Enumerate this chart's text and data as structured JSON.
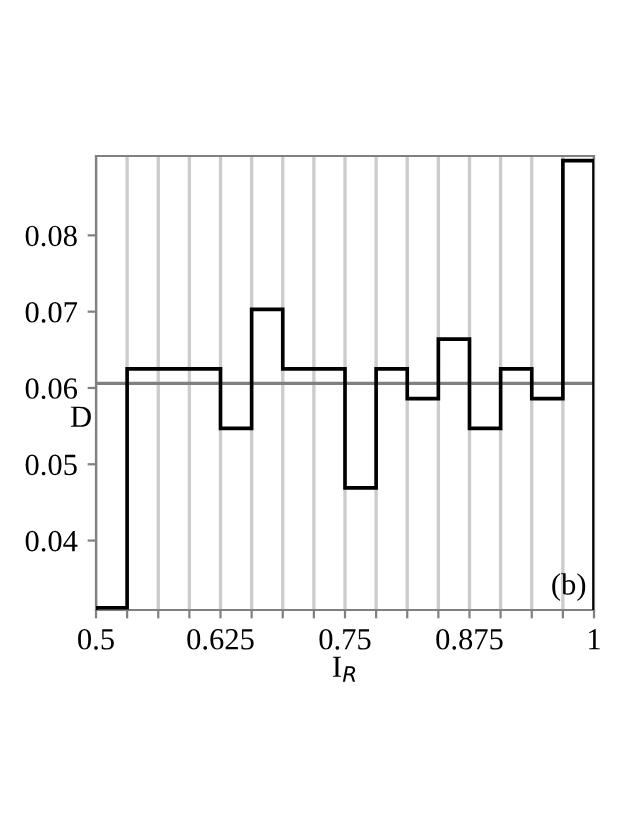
{
  "chart_data": {
    "type": "histogram",
    "xlabel": "I$_{R}$",
    "ylabel": "D",
    "bins": [
      0.5,
      0.53125,
      0.5625,
      0.59375,
      0.625,
      0.65625,
      0.6875,
      0.71875,
      0.75,
      0.78125,
      0.8125,
      0.84375,
      0.875,
      0.90625,
      0.9375,
      0.96875,
      1.0
    ],
    "values": [
      0.0312,
      0.0625,
      0.0625,
      0.0625,
      0.0547,
      0.0703,
      0.0625,
      0.0625,
      0.0469,
      0.0625,
      0.0586,
      0.0664,
      0.0547,
      0.0625,
      0.0586,
      0.0898
    ],
    "color": "#000000",
    "xlim": [
      0.5,
      1.0
    ],
    "ylim": [
      0.0309,
      0.0904
    ],
    "xticks": [
      0.5,
      {
        "value": 0.53125,
        "label": null
      },
      {
        "value": 0.5625,
        "label": null
      },
      {
        "value": 0.59375,
        "label": null
      },
      0.625,
      {
        "value": 0.65625,
        "label": null
      },
      {
        "value": 0.6875,
        "label": null
      },
      {
        "value": 0.71875,
        "label": null
      },
      0.75,
      {
        "value": 0.78125,
        "label": null
      },
      {
        "value": 0.8125,
        "label": null
      },
      {
        "value": 0.84375,
        "label": null
      },
      0.875,
      {
        "value": 0.90625,
        "label": null
      },
      {
        "value": 0.9375,
        "label": null
      },
      {
        "value": 0.96875,
        "label": null
      },
      1
    ],
    "yticks": [
      0.04,
      0.05,
      0.06,
      0.07,
      0.08
    ],
    "grid": "x",
    "ref_lines": [
      {
        "axis": "y",
        "value": 0.0606,
        "color": "#808080"
      }
    ],
    "annotations": [
      "(b)"
    ]
  }
}
